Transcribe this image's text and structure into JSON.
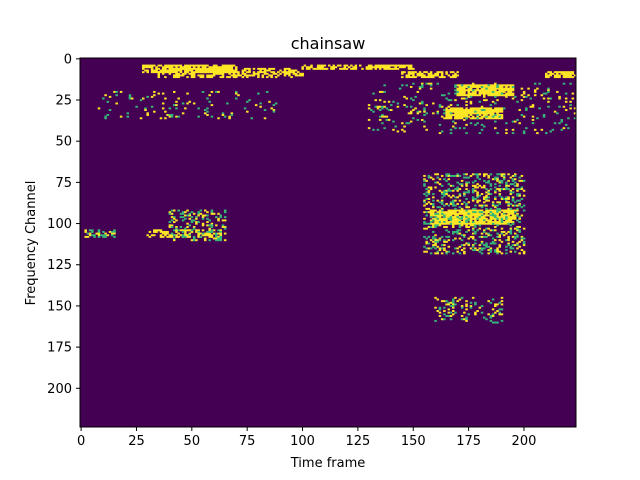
{
  "chart_data": {
    "type": "heatmap",
    "title": "chainsaw",
    "xlabel": "Time frame",
    "ylabel": "Frequency Channel",
    "xlim": [
      -0.5,
      223.5
    ],
    "ylim": [
      223.5,
      -0.5
    ],
    "n_time": 224,
    "n_channels": 224,
    "xticks": [
      0,
      25,
      50,
      75,
      100,
      125,
      150,
      175,
      200
    ],
    "yticks": [
      0,
      25,
      50,
      75,
      100,
      125,
      150,
      175,
      200
    ],
    "colormap": "viridis-binary",
    "background_value": 0,
    "active_value": 1,
    "colors": {
      "background": "#440154",
      "active": "#fde725",
      "mid": "#35b779"
    },
    "active_regions": [
      {
        "x": [
          28,
          70
        ],
        "y": [
          4,
          8
        ],
        "value": 1,
        "density": 0.75
      },
      {
        "x": [
          35,
          100
        ],
        "y": [
          6,
          11
        ],
        "value": 1,
        "density": 0.5
      },
      {
        "x": [
          100,
          150
        ],
        "y": [
          4,
          6
        ],
        "value": 1,
        "density": 0.65
      },
      {
        "x": [
          145,
          170
        ],
        "y": [
          8,
          11
        ],
        "value": 1,
        "density": 0.6
      },
      {
        "x": [
          170,
          195
        ],
        "y": [
          16,
          22
        ],
        "value": 1,
        "density": 0.9
      },
      {
        "x": [
          165,
          190
        ],
        "y": [
          30,
          36
        ],
        "value": 1,
        "density": 0.9
      },
      {
        "x": [
          210,
          223
        ],
        "y": [
          8,
          11
        ],
        "value": 1,
        "density": 0.7
      },
      {
        "x": [
          158,
          195
        ],
        "y": [
          92,
          100
        ],
        "value": 1,
        "density": 0.85
      },
      {
        "x": [
          155,
          200
        ],
        "y": [
          70,
          118
        ],
        "value": 1,
        "density": 0.3
      },
      {
        "x": [
          30,
          60
        ],
        "y": [
          104,
          108
        ],
        "value": 1,
        "density": 0.45
      },
      {
        "x": [
          40,
          65
        ],
        "y": [
          92,
          110
        ],
        "value": 1,
        "density": 0.3
      },
      {
        "x": [
          160,
          190
        ],
        "y": [
          145,
          160
        ],
        "value": 1,
        "density": 0.2
      },
      {
        "x": [
          2,
          15
        ],
        "y": [
          104,
          108
        ],
        "value": 1,
        "density": 0.35
      },
      {
        "x": [
          8,
          90
        ],
        "y": [
          20,
          36
        ],
        "value": 1,
        "density": 0.08
      },
      {
        "x": [
          130,
          223
        ],
        "y": [
          15,
          45
        ],
        "value": 1,
        "density": 0.1
      }
    ]
  }
}
